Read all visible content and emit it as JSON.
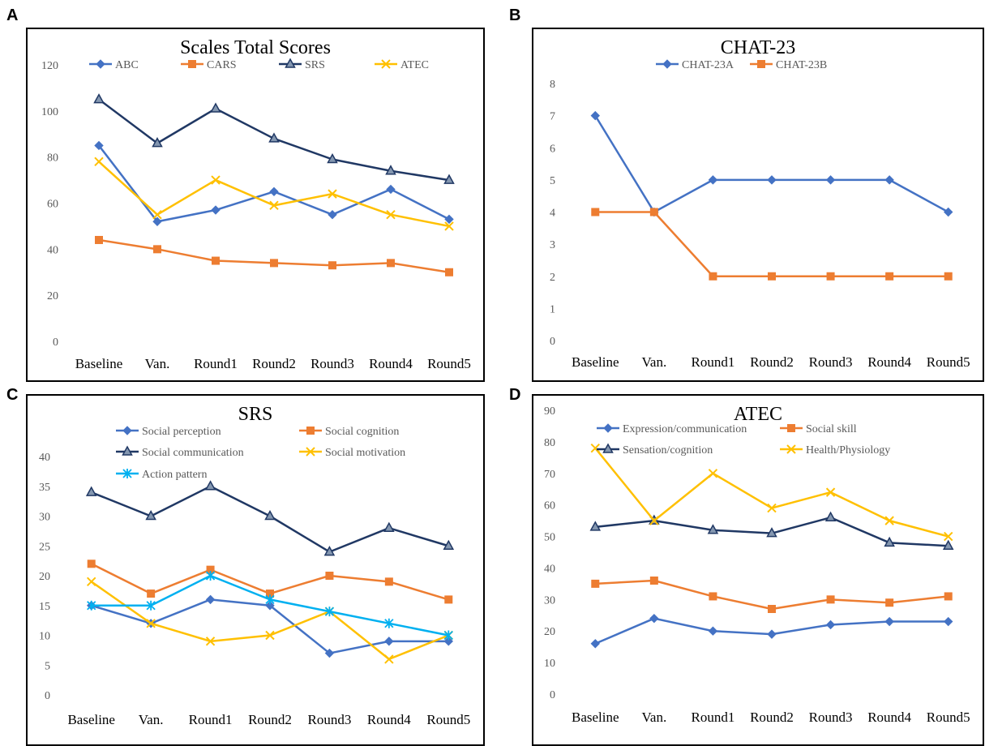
{
  "panel_letters": [
    "A",
    "B",
    "C",
    "D"
  ],
  "colors": {
    "blue": "#4472C4",
    "orange": "#ED7D31",
    "navy": "#203864",
    "yellow": "#FFC000",
    "cyan": "#00B0F0"
  },
  "chart_data": [
    {
      "id": "A",
      "type": "line",
      "title": "Scales Total Scores",
      "categories": [
        "Baseline",
        "Van.",
        "Round1",
        "Round2",
        "Round3",
        "Round4",
        "Round5"
      ],
      "ylim": [
        0,
        120
      ],
      "yticks": [
        0,
        20,
        40,
        60,
        80,
        100,
        120
      ],
      "grid": false,
      "legend_position": "top",
      "series": [
        {
          "name": "ABC",
          "color": "#4472C4",
          "marker": "diamond",
          "values": [
            85,
            52,
            57,
            65,
            55,
            66,
            53
          ]
        },
        {
          "name": "CARS",
          "color": "#ED7D31",
          "marker": "square",
          "values": [
            44,
            40,
            35,
            34,
            33,
            34,
            30
          ]
        },
        {
          "name": "SRS",
          "color": "#203864",
          "marker": "triangle",
          "values": [
            105,
            86,
            101,
            88,
            79,
            74,
            70
          ]
        },
        {
          "name": "ATEC",
          "color": "#FFC000",
          "marker": "x",
          "values": [
            78,
            55,
            70,
            59,
            64,
            55,
            50
          ]
        }
      ]
    },
    {
      "id": "B",
      "type": "line",
      "title": "CHAT-23",
      "categories": [
        "Baseline",
        "Van.",
        "Round1",
        "Round2",
        "Round3",
        "Round4",
        "Round5"
      ],
      "ylim": [
        0,
        8
      ],
      "yticks": [
        0,
        1,
        2,
        3,
        4,
        5,
        6,
        7,
        8
      ],
      "grid": false,
      "legend_position": "top",
      "series": [
        {
          "name": "CHAT-23A",
          "color": "#4472C4",
          "marker": "diamond",
          "values": [
            7,
            4,
            5,
            5,
            5,
            5,
            4
          ]
        },
        {
          "name": "CHAT-23B",
          "color": "#ED7D31",
          "marker": "square",
          "values": [
            4,
            4,
            2,
            2,
            2,
            2,
            2
          ]
        }
      ]
    },
    {
      "id": "C",
      "type": "line",
      "title": "SRS",
      "categories": [
        "Baseline",
        "Van.",
        "Round1",
        "Round2",
        "Round3",
        "Round4",
        "Round5"
      ],
      "ylim": [
        0,
        40
      ],
      "yticks": [
        0,
        5,
        10,
        15,
        20,
        25,
        30,
        35,
        40
      ],
      "grid": false,
      "legend_position": "top",
      "series": [
        {
          "name": "Social perception",
          "color": "#4472C4",
          "marker": "diamond",
          "values": [
            15,
            12,
            16,
            15,
            7,
            9,
            9
          ]
        },
        {
          "name": "Social cognition",
          "color": "#ED7D31",
          "marker": "square",
          "values": [
            22,
            17,
            21,
            17,
            20,
            19,
            16
          ]
        },
        {
          "name": "Social communication",
          "color": "#203864",
          "marker": "triangle",
          "values": [
            34,
            30,
            35,
            30,
            24,
            28,
            25
          ]
        },
        {
          "name": "Social motivation",
          "color": "#FFC000",
          "marker": "x",
          "values": [
            19,
            12,
            9,
            10,
            14,
            6,
            10
          ]
        },
        {
          "name": "Action pattern",
          "color": "#00B0F0",
          "marker": "star",
          "values": [
            15,
            15,
            20,
            16,
            14,
            12,
            10
          ]
        }
      ]
    },
    {
      "id": "D",
      "type": "line",
      "title": "ATEC",
      "categories": [
        "Baseline",
        "Van.",
        "Round1",
        "Round2",
        "Round3",
        "Round4",
        "Round5"
      ],
      "ylim": [
        0,
        90
      ],
      "yticks": [
        0,
        10,
        20,
        30,
        40,
        50,
        60,
        70,
        80,
        90
      ],
      "grid": false,
      "legend_position": "top",
      "series": [
        {
          "name": "Expression/communication",
          "color": "#4472C4",
          "marker": "diamond",
          "values": [
            16,
            24,
            20,
            19,
            22,
            23,
            23
          ]
        },
        {
          "name": "Social skill",
          "color": "#ED7D31",
          "marker": "square",
          "values": [
            35,
            36,
            31,
            27,
            30,
            29,
            31
          ]
        },
        {
          "name": "Sensation/cognition",
          "color": "#203864",
          "marker": "triangle",
          "values": [
            53,
            55,
            52,
            51,
            56,
            48,
            47
          ]
        },
        {
          "name": "Health/Physiology",
          "color": "#FFC000",
          "marker": "x",
          "values": [
            78,
            55,
            70,
            59,
            64,
            55,
            50
          ]
        }
      ]
    }
  ]
}
